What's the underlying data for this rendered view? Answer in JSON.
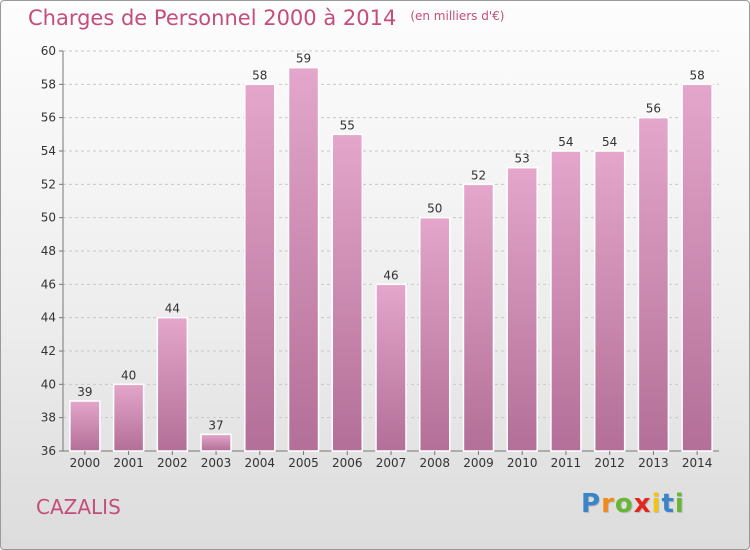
{
  "chart_data": {
    "type": "bar",
    "title": "Charges de Personnel 2000 à 2014",
    "subtitle": "(en milliers d'€)",
    "xlabel": "",
    "ylabel": "",
    "categories": [
      "2000",
      "2001",
      "2002",
      "2003",
      "2004",
      "2005",
      "2006",
      "2007",
      "2008",
      "2009",
      "2010",
      "2011",
      "2012",
      "2013",
      "2014"
    ],
    "values": [
      39,
      40,
      44,
      37,
      58,
      59,
      55,
      46,
      50,
      52,
      53,
      54,
      54,
      56,
      58
    ],
    "ylim": [
      36,
      60
    ],
    "yticks": [
      36,
      38,
      40,
      42,
      44,
      46,
      48,
      50,
      52,
      54,
      56,
      58,
      60
    ],
    "grid": true,
    "bar_color_top": "#e4a6cb",
    "bar_color_bottom": "#b36f97"
  },
  "place": "CAZALIS",
  "brand": {
    "letters": [
      "P",
      "r",
      "o",
      "x",
      "i",
      "t",
      "i"
    ],
    "colors": [
      "#3a84c8",
      "#f08a1c",
      "#6bb536",
      "#e0261f",
      "#f2c318",
      "#3a84c8",
      "#6bb536"
    ]
  }
}
